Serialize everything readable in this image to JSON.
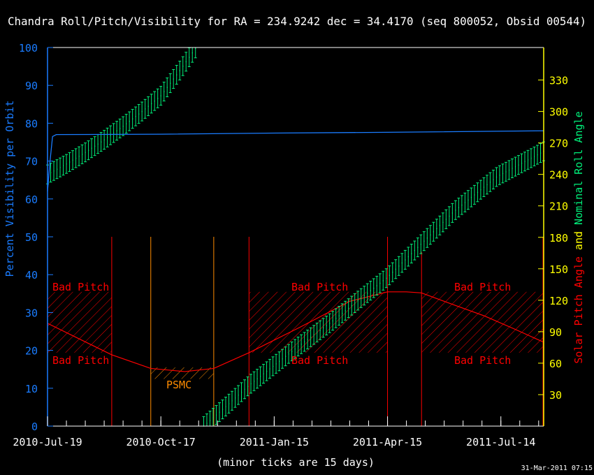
{
  "chart_data": {
    "type": "line",
    "title": "Chandra Roll/Pitch/Visibility for RA = 234.9242 dec = 34.4170 (seq 800052, Obsid 00544)",
    "xlabel": "(minor ticks are 15 days)",
    "ylabel_left": "Percent Visibility per Orbit",
    "ylabel_right_parts": [
      "Nominal Roll Angle",
      "and",
      "Solar Pitch Angle"
    ],
    "timestamp": "31-Mar-2011 07:15",
    "xlim": [
      "2010-07-19",
      "2011-08-17"
    ],
    "ylim_left": [
      0,
      100
    ],
    "ylim_right": [
      0,
      361
    ],
    "x_ticks": [
      {
        "date": "2010-07-19",
        "label": "2010-Jul-19"
      },
      {
        "date": "2010-10-17",
        "label": "2010-Oct-17"
      },
      {
        "date": "2011-01-15",
        "label": "2011-Jan-15"
      },
      {
        "date": "2011-04-15",
        "label": "2011-Apr-15"
      },
      {
        "date": "2011-07-14",
        "label": "2011-Jul-14"
      }
    ],
    "minor_tick_days": 15,
    "y_ticks_left": [
      "0",
      "10",
      "20",
      "30",
      "40",
      "50",
      "60",
      "70",
      "80",
      "90",
      "100"
    ],
    "y_ticks_right": [
      "30",
      "60",
      "90",
      "120",
      "150",
      "180",
      "210",
      "240",
      "270",
      "300",
      "330"
    ],
    "colors": {
      "visibility": "#1a7cff",
      "roll": "#00f07a",
      "pitch": "#ff0000",
      "psmc": "#ff8c00",
      "right_axis": "#ffff00",
      "frame": "#ffffff"
    },
    "series": [
      {
        "name": "Percent Visibility per Orbit",
        "axis": "left",
        "points": [
          [
            "2010-07-19",
            62
          ],
          [
            "2010-07-21",
            70
          ],
          [
            "2010-07-23",
            76.5
          ],
          [
            "2010-07-26",
            77
          ],
          [
            "2010-10-17",
            77.1
          ],
          [
            "2011-01-15",
            77.4
          ],
          [
            "2011-04-15",
            77.6
          ],
          [
            "2011-08-17",
            78
          ]
        ]
      },
      {
        "name": "Nominal Roll Angle",
        "axis": "right",
        "error": 9,
        "segments": [
          [
            [
              "2010-07-19",
              240
            ],
            [
              "2010-08-03",
              250
            ],
            [
              "2010-08-18",
              261
            ],
            [
              "2010-09-02",
              273
            ],
            [
              "2010-09-17",
              286
            ],
            [
              "2010-10-02",
              300
            ],
            [
              "2010-10-17",
              315
            ],
            [
              "2010-11-01",
              339
            ],
            [
              "2010-11-14",
              361
            ]
          ],
          [
            [
              "2010-11-20",
              0
            ],
            [
              "2010-12-06",
              17
            ],
            [
              "2010-12-26",
              39
            ],
            [
              "2011-01-15",
              58
            ],
            [
              "2011-02-02",
              75
            ],
            [
              "2011-03-01",
              99
            ],
            [
              "2011-03-26",
              123
            ],
            [
              "2011-04-15",
              142
            ],
            [
              "2011-05-12",
              174
            ],
            [
              "2011-06-07",
              205
            ],
            [
              "2011-07-11",
              238
            ],
            [
              "2011-08-17",
              262
            ]
          ]
        ]
      },
      {
        "name": "Solar Pitch Angle",
        "axis": "right",
        "points": [
          [
            "2010-07-19",
            98
          ],
          [
            "2010-09-08",
            68
          ],
          [
            "2010-10-09",
            55
          ],
          [
            "2010-11-05",
            52
          ],
          [
            "2010-11-28",
            55
          ],
          [
            "2010-12-26",
            70
          ],
          [
            "2011-02-04",
            94
          ],
          [
            "2011-03-16",
            119
          ],
          [
            "2011-04-15",
            128
          ],
          [
            "2011-04-30",
            128
          ],
          [
            "2011-05-12",
            127
          ],
          [
            "2011-06-08",
            115
          ],
          [
            "2011-07-01",
            105
          ],
          [
            "2011-07-24",
            93
          ],
          [
            "2011-08-17",
            80
          ]
        ]
      }
    ],
    "bad_pitch": {
      "label": "Bad Pitch",
      "pitch_range": [
        70,
        128
      ],
      "ranges": [
        [
          "2010-07-19",
          "2010-09-08"
        ],
        [
          "2010-12-26",
          "2011-04-15"
        ],
        [
          "2011-05-12",
          "2011-08-17"
        ]
      ]
    },
    "psmc": {
      "label": "PSMC",
      "pitch_range": [
        45,
        56
      ],
      "range": [
        "2010-10-09",
        "2010-11-28"
      ]
    },
    "vertical_lines": [
      {
        "date": "2010-09-08",
        "kind": "pitch"
      },
      {
        "date": "2010-10-09",
        "kind": "psmc"
      },
      {
        "date": "2010-11-28",
        "kind": "psmc"
      },
      {
        "date": "2010-12-26",
        "kind": "pitch"
      },
      {
        "date": "2011-04-15",
        "kind": "pitch"
      },
      {
        "date": "2011-05-12",
        "kind": "pitch",
        "top_percent": 46
      }
    ]
  }
}
